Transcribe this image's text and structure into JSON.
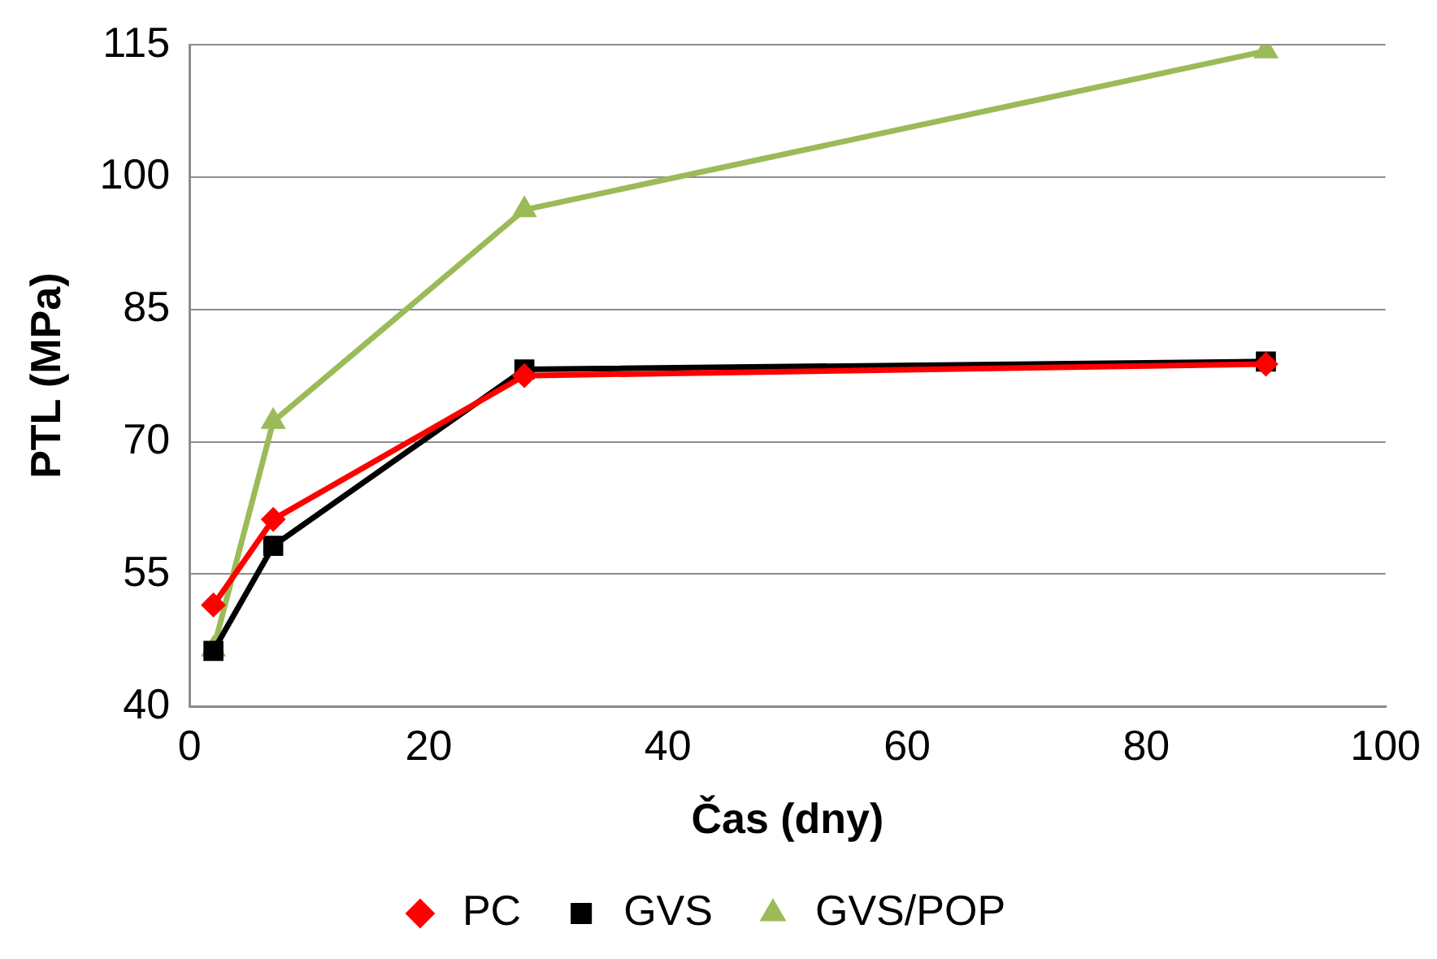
{
  "chart_data": {
    "type": "line",
    "xlabel": "Čas (dny)",
    "ylabel": "PTL (MPa)",
    "xlim": [
      0,
      100
    ],
    "xticks": [
      0,
      20,
      40,
      60,
      80,
      100
    ],
    "ylim": [
      40,
      115
    ],
    "yticks": [
      40,
      55,
      70,
      85,
      100,
      115
    ],
    "grid": "y",
    "legend": "bottom",
    "x": [
      2,
      7,
      28,
      90
    ],
    "series": [
      {
        "name": "PC",
        "color": "#ff0000",
        "marker": "diamond",
        "values": [
          51.5,
          61.2,
          77.5,
          78.8
        ]
      },
      {
        "name": "GVS",
        "color": "#000000",
        "marker": "square",
        "values": [
          46.3,
          58.2,
          78.2,
          79.1
        ]
      },
      {
        "name": "GVS/POP",
        "color": "#9bbb59",
        "marker": "triangle",
        "values": [
          46.5,
          72.3,
          96.3,
          114.3
        ]
      }
    ]
  }
}
